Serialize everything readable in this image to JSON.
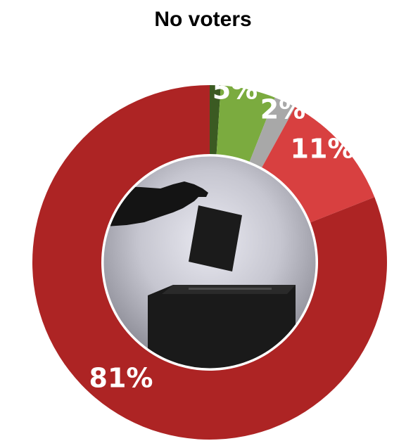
{
  "chart_data": {
    "type": "pie",
    "title": "No voters",
    "categories": [
      "Dark green",
      "Light green",
      "Gray",
      "Light red",
      "Red"
    ],
    "values": [
      1,
      5,
      2,
      11,
      81
    ],
    "labels": [
      "",
      "5%",
      "2%",
      "11%",
      "81%"
    ],
    "colors": [
      "#3b5a22",
      "#7bab3f",
      "#a8a8a8",
      "#d84040",
      "#ad2424"
    ],
    "center_image": "ballot-box-silhouette"
  }
}
